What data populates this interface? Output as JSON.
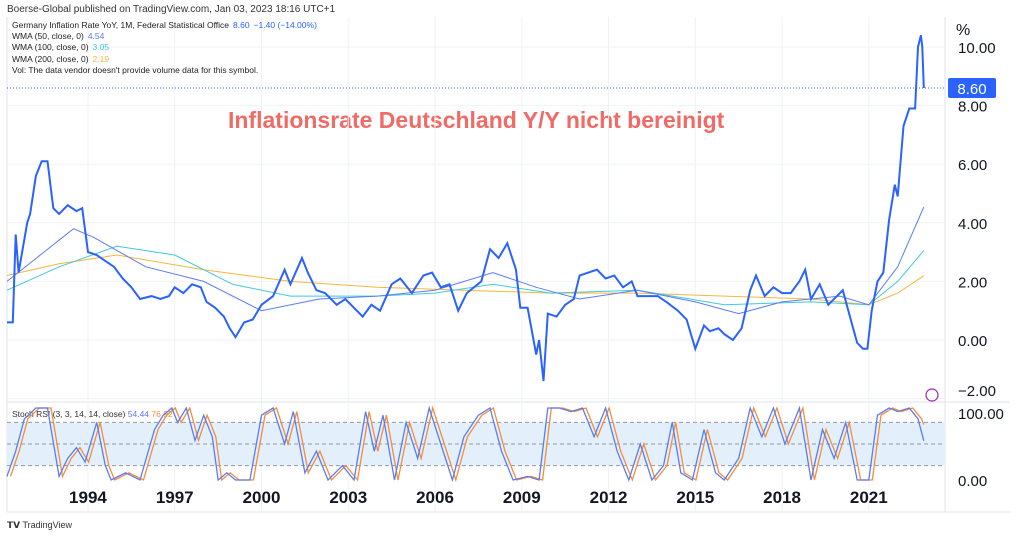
{
  "header": {
    "published": "Boerse-Global published on TradingView.com, Jan 03, 2023 18:16 UTC+1"
  },
  "legend": {
    "main": {
      "label": "Germany Inflation Rate YoY, 1M, Federal Statistical Office",
      "value": "8.60",
      "change": "−1.40 (−14.00%)"
    },
    "wma50": {
      "label": "WMA (50, close, 0)",
      "value": "4.54"
    },
    "wma100": {
      "label": "WMA (100, close, 0)",
      "value": "3.05"
    },
    "wma200": {
      "label": "WMA (200, close, 0)",
      "value": "2.19"
    },
    "vol": "Vol: The data vendor doesn't provide volume data for this symbol."
  },
  "stoch": {
    "label": "Stoch RSI (3, 3, 14, 14, close)",
    "k": "54.44",
    "d": "76.92"
  },
  "footer": {
    "logo": "TradingView"
  },
  "colors": {
    "main": "#2962ff",
    "wma50": "#5b7cf0",
    "wma100": "#3fc9e0",
    "wma200": "#f5b73b",
    "k": "#5b7cf0",
    "d": "#f58c3b"
  },
  "chart_data": {
    "type": "line",
    "title": "Inflationsrate Deutschland Y/Y nicht bereinigt",
    "ylabel": "%",
    "unit_label": "%",
    "ylim": [
      -2,
      11
    ],
    "xlim": [
      1991.2,
      2023.1
    ],
    "x_ticks": [
      "1994",
      "1997",
      "2000",
      "2003",
      "2006",
      "2009",
      "2012",
      "2015",
      "2018",
      "2021"
    ],
    "y_ticks": [
      "10.00",
      "8.00",
      "6.00",
      "4.00",
      "2.00",
      "0.00",
      "−2.00"
    ],
    "last_value_label": "8.60",
    "series": [
      {
        "name": "Germany Inflation Rate YoY",
        "points": [
          [
            1991.2,
            0.6
          ],
          [
            1991.4,
            0.6
          ],
          [
            1991.5,
            3.6
          ],
          [
            1991.6,
            2.3
          ],
          [
            1991.9,
            4.0
          ],
          [
            1992.0,
            4.3
          ],
          [
            1992.2,
            5.6
          ],
          [
            1992.4,
            6.1
          ],
          [
            1992.6,
            6.1
          ],
          [
            1992.8,
            4.5
          ],
          [
            1993.0,
            4.3
          ],
          [
            1993.3,
            4.6
          ],
          [
            1993.6,
            4.4
          ],
          [
            1993.8,
            4.5
          ],
          [
            1994.0,
            3.0
          ],
          [
            1994.3,
            2.9
          ],
          [
            1994.6,
            2.7
          ],
          [
            1994.9,
            2.5
          ],
          [
            1995.2,
            2.1
          ],
          [
            1995.5,
            1.8
          ],
          [
            1995.8,
            1.4
          ],
          [
            1996.2,
            1.5
          ],
          [
            1996.5,
            1.4
          ],
          [
            1996.8,
            1.5
          ],
          [
            1997.0,
            1.8
          ],
          [
            1997.3,
            1.6
          ],
          [
            1997.6,
            1.9
          ],
          [
            1997.9,
            1.8
          ],
          [
            1998.1,
            1.3
          ],
          [
            1998.4,
            1.1
          ],
          [
            1998.7,
            0.8
          ],
          [
            1998.9,
            0.4
          ],
          [
            1999.1,
            0.1
          ],
          [
            1999.4,
            0.6
          ],
          [
            1999.7,
            0.7
          ],
          [
            2000.0,
            1.2
          ],
          [
            2000.4,
            1.5
          ],
          [
            2000.8,
            2.4
          ],
          [
            2001.0,
            1.9
          ],
          [
            2001.4,
            2.8
          ],
          [
            2001.6,
            2.3
          ],
          [
            2001.9,
            1.7
          ],
          [
            2002.2,
            1.6
          ],
          [
            2002.6,
            1.2
          ],
          [
            2002.9,
            1.4
          ],
          [
            2003.2,
            1.1
          ],
          [
            2003.5,
            0.8
          ],
          [
            2003.8,
            1.2
          ],
          [
            2004.1,
            1.0
          ],
          [
            2004.5,
            1.9
          ],
          [
            2004.8,
            2.1
          ],
          [
            2005.2,
            1.6
          ],
          [
            2005.6,
            2.2
          ],
          [
            2005.9,
            2.3
          ],
          [
            2006.2,
            1.8
          ],
          [
            2006.5,
            1.9
          ],
          [
            2006.8,
            1.0
          ],
          [
            2007.1,
            1.6
          ],
          [
            2007.6,
            2.0
          ],
          [
            2007.9,
            3.1
          ],
          [
            2008.2,
            2.8
          ],
          [
            2008.5,
            3.3
          ],
          [
            2008.8,
            2.4
          ],
          [
            2008.95,
            1.1
          ],
          [
            2009.2,
            1.1
          ],
          [
            2009.5,
            -0.5
          ],
          [
            2009.6,
            0.0
          ],
          [
            2009.75,
            -1.4
          ],
          [
            2009.9,
            0.9
          ],
          [
            2010.2,
            0.8
          ],
          [
            2010.5,
            1.2
          ],
          [
            2010.8,
            1.4
          ],
          [
            2011.0,
            2.2
          ],
          [
            2011.3,
            2.3
          ],
          [
            2011.6,
            2.4
          ],
          [
            2011.9,
            2.1
          ],
          [
            2012.2,
            2.2
          ],
          [
            2012.5,
            1.8
          ],
          [
            2012.8,
            2.0
          ],
          [
            2013.0,
            1.5
          ],
          [
            2013.4,
            1.5
          ],
          [
            2013.7,
            1.5
          ],
          [
            2014.0,
            1.3
          ],
          [
            2014.4,
            1.0
          ],
          [
            2014.7,
            0.7
          ],
          [
            2015.0,
            -0.3
          ],
          [
            2015.3,
            0.5
          ],
          [
            2015.5,
            0.3
          ],
          [
            2015.8,
            0.4
          ],
          [
            2016.0,
            0.2
          ],
          [
            2016.3,
            0.0
          ],
          [
            2016.6,
            0.4
          ],
          [
            2016.9,
            1.7
          ],
          [
            2017.1,
            2.2
          ],
          [
            2017.4,
            1.5
          ],
          [
            2017.7,
            1.8
          ],
          [
            2018.0,
            1.6
          ],
          [
            2018.3,
            1.6
          ],
          [
            2018.6,
            2.0
          ],
          [
            2018.8,
            2.4
          ],
          [
            2019.0,
            1.4
          ],
          [
            2019.3,
            1.9
          ],
          [
            2019.6,
            1.2
          ],
          [
            2019.9,
            1.5
          ],
          [
            2020.1,
            1.7
          ],
          [
            2020.4,
            0.6
          ],
          [
            2020.6,
            -0.1
          ],
          [
            2020.8,
            -0.3
          ],
          [
            2020.95,
            -0.3
          ],
          [
            2021.1,
            1.0
          ],
          [
            2021.3,
            2.0
          ],
          [
            2021.5,
            2.3
          ],
          [
            2021.7,
            4.1
          ],
          [
            2021.9,
            5.3
          ],
          [
            2022.0,
            4.9
          ],
          [
            2022.2,
            7.3
          ],
          [
            2022.4,
            7.9
          ],
          [
            2022.6,
            7.9
          ],
          [
            2022.7,
            10.0
          ],
          [
            2022.8,
            10.4
          ],
          [
            2022.85,
            10.0
          ],
          [
            2022.9,
            8.6
          ]
        ]
      },
      {
        "name": "WMA 50",
        "points": [
          [
            1991.2,
            2.0
          ],
          [
            1993.5,
            3.8
          ],
          [
            1994.2,
            3.5
          ],
          [
            1996,
            2.5
          ],
          [
            1998,
            2.0
          ],
          [
            2000,
            1.0
          ],
          [
            2002,
            1.4
          ],
          [
            2004,
            1.5
          ],
          [
            2006,
            1.7
          ],
          [
            2008,
            2.3
          ],
          [
            2009.5,
            1.8
          ],
          [
            2011,
            1.4
          ],
          [
            2013,
            1.7
          ],
          [
            2015,
            1.3
          ],
          [
            2016.5,
            0.9
          ],
          [
            2018,
            1.3
          ],
          [
            2020,
            1.5
          ],
          [
            2021,
            1.2
          ],
          [
            2022,
            2.5
          ],
          [
            2022.9,
            4.54
          ]
        ]
      },
      {
        "name": "WMA 100",
        "points": [
          [
            1991.2,
            1.7
          ],
          [
            1993,
            2.5
          ],
          [
            1995,
            3.2
          ],
          [
            1997,
            2.9
          ],
          [
            1999,
            1.9
          ],
          [
            2001,
            1.5
          ],
          [
            2004,
            1.5
          ],
          [
            2006,
            1.6
          ],
          [
            2008,
            1.9
          ],
          [
            2010,
            1.6
          ],
          [
            2013,
            1.7
          ],
          [
            2016,
            1.2
          ],
          [
            2019,
            1.3
          ],
          [
            2021,
            1.2
          ],
          [
            2022,
            2.0
          ],
          [
            2022.9,
            3.05
          ]
        ]
      },
      {
        "name": "WMA 200",
        "points": [
          [
            1991.2,
            2.2
          ],
          [
            1993,
            2.6
          ],
          [
            1995,
            2.9
          ],
          [
            1998,
            2.4
          ],
          [
            2001,
            2.0
          ],
          [
            2004,
            1.8
          ],
          [
            2007,
            1.7
          ],
          [
            2010,
            1.6
          ],
          [
            2013,
            1.6
          ],
          [
            2016,
            1.5
          ],
          [
            2019,
            1.4
          ],
          [
            2021,
            1.2
          ],
          [
            2022,
            1.6
          ],
          [
            2022.9,
            2.19
          ]
        ]
      }
    ],
    "stoch_rsi": {
      "ylim": [
        0,
        100
      ],
      "y_ticks": [
        "100.00",
        "0.00"
      ],
      "bands": [
        80,
        50,
        20
      ],
      "k": [
        [
          1991.2,
          5
        ],
        [
          1991.5,
          40
        ],
        [
          1991.8,
          85
        ],
        [
          1992.2,
          100
        ],
        [
          1992.6,
          100
        ],
        [
          1993.0,
          5
        ],
        [
          1993.3,
          30
        ],
        [
          1993.6,
          45
        ],
        [
          1993.9,
          25
        ],
        [
          1994.3,
          80
        ],
        [
          1994.6,
          20
        ],
        [
          1994.8,
          0
        ],
        [
          1995.3,
          10
        ],
        [
          1995.8,
          0
        ],
        [
          1996.3,
          70
        ],
        [
          1996.6,
          90
        ],
        [
          1996.9,
          100
        ],
        [
          1997.1,
          80
        ],
        [
          1997.4,
          100
        ],
        [
          1997.7,
          55
        ],
        [
          1998.0,
          90
        ],
        [
          1998.3,
          60
        ],
        [
          1998.5,
          0
        ],
        [
          1998.8,
          10
        ],
        [
          1999.1,
          0
        ],
        [
          1999.6,
          0
        ],
        [
          2000.0,
          90
        ],
        [
          2000.4,
          100
        ],
        [
          2000.8,
          50
        ],
        [
          2001.1,
          95
        ],
        [
          2001.5,
          10
        ],
        [
          2001.9,
          40
        ],
        [
          2002.3,
          0
        ],
        [
          2002.8,
          20
        ],
        [
          2003.2,
          0
        ],
        [
          2003.6,
          95
        ],
        [
          2003.9,
          40
        ],
        [
          2004.2,
          90
        ],
        [
          2004.6,
          0
        ],
        [
          2005.0,
          80
        ],
        [
          2005.4,
          30
        ],
        [
          2005.8,
          100
        ],
        [
          2006.2,
          50
        ],
        [
          2006.6,
          0
        ],
        [
          2007.0,
          60
        ],
        [
          2007.5,
          90
        ],
        [
          2007.9,
          100
        ],
        [
          2008.3,
          40
        ],
        [
          2008.7,
          0
        ],
        [
          2009.2,
          5
        ],
        [
          2009.6,
          0
        ],
        [
          2009.9,
          100
        ],
        [
          2010.3,
          100
        ],
        [
          2010.7,
          95
        ],
        [
          2011.1,
          100
        ],
        [
          2011.5,
          60
        ],
        [
          2011.9,
          100
        ],
        [
          2012.3,
          40
        ],
        [
          2012.7,
          0
        ],
        [
          2013.1,
          50
        ],
        [
          2013.5,
          0
        ],
        [
          2013.9,
          20
        ],
        [
          2014.2,
          80
        ],
        [
          2014.5,
          10
        ],
        [
          2014.9,
          0
        ],
        [
          2015.3,
          70
        ],
        [
          2015.7,
          10
        ],
        [
          2016.0,
          0
        ],
        [
          2016.5,
          30
        ],
        [
          2016.9,
          100
        ],
        [
          2017.3,
          60
        ],
        [
          2017.7,
          100
        ],
        [
          2018.1,
          50
        ],
        [
          2018.6,
          100
        ],
        [
          2019.0,
          0
        ],
        [
          2019.4,
          70
        ],
        [
          2019.8,
          30
        ],
        [
          2020.2,
          80
        ],
        [
          2020.6,
          0
        ],
        [
          2021.0,
          0
        ],
        [
          2021.3,
          90
        ],
        [
          2021.7,
          100
        ],
        [
          2022.0,
          95
        ],
        [
          2022.4,
          100
        ],
        [
          2022.7,
          85
        ],
        [
          2022.9,
          54.44
        ]
      ],
      "d_lag_years": 0.12,
      "d_last": 76.92
    }
  }
}
